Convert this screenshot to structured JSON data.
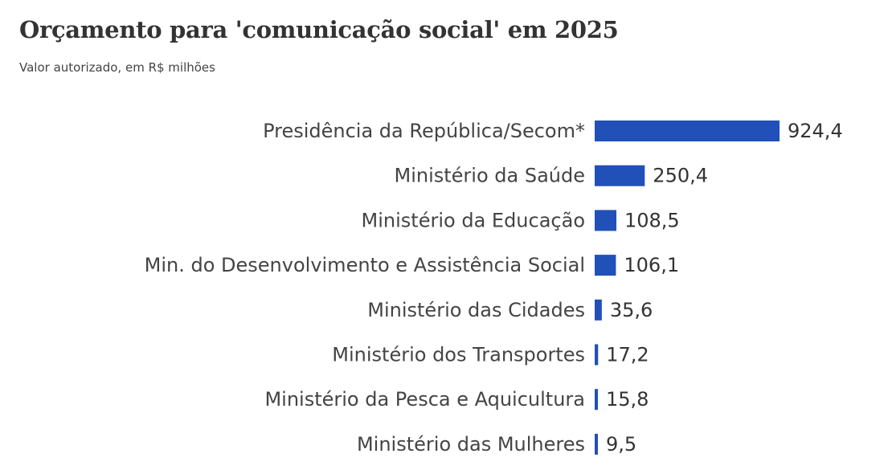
{
  "chart_data": {
    "type": "bar",
    "orientation": "horizontal",
    "title": "Orçamento para 'comunicação social' em 2025",
    "subtitle": "Valor autorizado, em R$ milhões",
    "categories": [
      "Presidência da República/Secom*",
      "Ministério da Saúde",
      "Ministério da Educação",
      "Min. do Desenvolvimento e Assistência Social",
      "Ministério das Cidades",
      "Ministério dos Transportes",
      "Ministério da Pesca e Aquicultura",
      "Ministério das Mulheres"
    ],
    "values": [
      924.4,
      250.4,
      108.5,
      106.1,
      35.6,
      17.2,
      15.8,
      9.5
    ],
    "value_labels": [
      "924,4",
      "250,4",
      "108,5",
      "106,1",
      "35,6",
      "17,2",
      "15,8",
      "9,5"
    ],
    "bar_color": "#2150b8",
    "xlim": [
      0,
      924.4
    ],
    "grid": false,
    "legend": "none"
  }
}
